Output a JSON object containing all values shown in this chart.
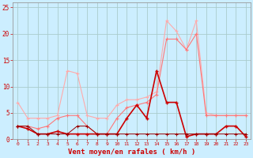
{
  "x": [
    0,
    1,
    2,
    3,
    4,
    5,
    6,
    7,
    8,
    9,
    10,
    11,
    12,
    13,
    14,
    15,
    16,
    17,
    18,
    19,
    20,
    21,
    22,
    23
  ],
  "series_lightest": [
    7,
    4,
    4,
    4,
    4.5,
    13,
    12.5,
    4.5,
    4,
    4,
    6.5,
    7.5,
    7.5,
    8,
    9,
    22.5,
    20.5,
    17,
    22.5,
    5,
    4.5,
    4.5,
    4.5,
    4.5
  ],
  "series_light": [
    2.5,
    2.5,
    2,
    2.5,
    4,
    4.5,
    4.5,
    2.5,
    1,
    1,
    4,
    6,
    6.5,
    7,
    8.5,
    19,
    19,
    17,
    20,
    4.5,
    4.5,
    4.5,
    4.5,
    4.5
  ],
  "series_medium": [
    2.5,
    2,
    1,
    1,
    1.5,
    1,
    1,
    1,
    1,
    1,
    1,
    4,
    6.5,
    4,
    13,
    7,
    7,
    0.5,
    1,
    1,
    1,
    2.5,
    2.5,
    0.5
  ],
  "series_dark": [
    2.5,
    2.5,
    1,
    1,
    1,
    1,
    2.5,
    2.5,
    1,
    1,
    1,
    1,
    1,
    1,
    1,
    1,
    1,
    1,
    1,
    1,
    1,
    1,
    1,
    1
  ],
  "background_color": "#cceeff",
  "grid_color": "#aacccc",
  "xlabel": "Vent moyen/en rafales ( km/h )",
  "tick_color": "#cc0000",
  "ylim": [
    0,
    26
  ],
  "yticks": [
    0,
    5,
    10,
    15,
    20,
    25
  ],
  "color_lightest": "#ffaaaa",
  "color_light": "#ff7777",
  "color_medium": "#cc0000",
  "color_dark": "#990000",
  "lw_lightest": 0.8,
  "lw_light": 0.8,
  "lw_medium": 1.2,
  "lw_dark": 0.7
}
